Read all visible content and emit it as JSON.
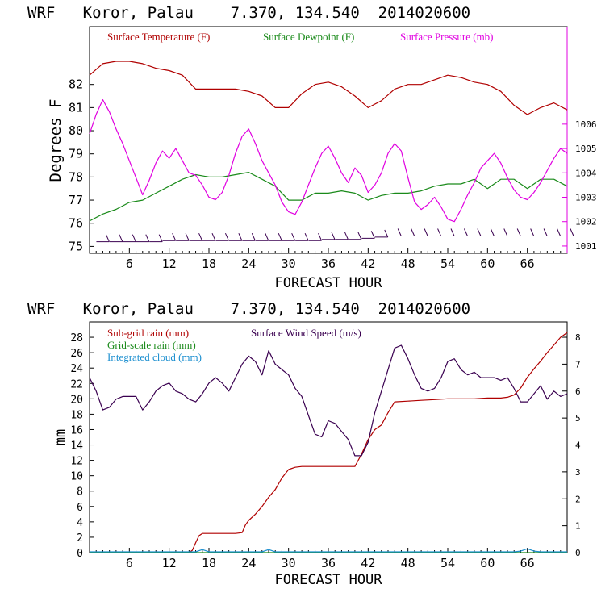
{
  "chart_data": [
    {
      "type": "line",
      "title": "WRF   Koror, Palau    7.370, 134.540  2014020600",
      "xlabel": "FORECAST HOUR",
      "ylabel": "Degrees F",
      "x_range": [
        0,
        72
      ],
      "x_ticks": [
        6,
        12,
        18,
        24,
        30,
        36,
        42,
        48,
        54,
        60,
        66
      ],
      "y_left_range": [
        74.7,
        84.5
      ],
      "y_left_ticks": [
        75,
        76,
        77,
        78,
        79,
        80,
        81,
        82
      ],
      "y_right_range": [
        1000.7,
        1010.0
      ],
      "y_right_ticks": [
        1001,
        1002,
        1003,
        1004,
        1005,
        1006
      ],
      "legend": [
        {
          "label": "Surface Temperature (F)",
          "color": "#b00000"
        },
        {
          "label": "Surface Dewpoint (F)",
          "color": "#1a8a1a"
        },
        {
          "label": "Surface Pressure (mb)",
          "color": "#e000e0"
        }
      ],
      "series": [
        {
          "name": "Surface Temperature (F)",
          "axis": "left",
          "color": "#b00000",
          "x": [
            0,
            2,
            4,
            6,
            8,
            10,
            12,
            14,
            16,
            18,
            20,
            22,
            24,
            26,
            28,
            30,
            32,
            34,
            36,
            38,
            40,
            42,
            44,
            46,
            48,
            50,
            52,
            54,
            56,
            58,
            60,
            62,
            64,
            66,
            68,
            70,
            72
          ],
          "y": [
            82.4,
            82.9,
            83.0,
            83.0,
            82.9,
            82.7,
            82.6,
            82.4,
            81.8,
            81.8,
            81.8,
            81.8,
            81.7,
            81.5,
            81.0,
            81.0,
            81.6,
            82.0,
            82.1,
            81.9,
            81.5,
            81.0,
            81.3,
            81.8,
            82.0,
            82.0,
            82.2,
            82.4,
            82.3,
            82.1,
            82.0,
            81.7,
            81.1,
            80.7,
            81.0,
            81.2,
            80.9
          ]
        },
        {
          "name": "Surface Dewpoint (F)",
          "axis": "left",
          "color": "#1a8a1a",
          "x": [
            0,
            2,
            4,
            6,
            8,
            10,
            12,
            14,
            16,
            18,
            20,
            22,
            24,
            26,
            28,
            30,
            32,
            34,
            36,
            38,
            40,
            42,
            44,
            46,
            48,
            50,
            52,
            54,
            56,
            58,
            60,
            62,
            64,
            66,
            68,
            70,
            72
          ],
          "y": [
            76.1,
            76.4,
            76.6,
            76.9,
            77.0,
            77.3,
            77.6,
            77.9,
            78.1,
            78.0,
            78.0,
            78.1,
            78.2,
            77.9,
            77.6,
            77.0,
            77.0,
            77.3,
            77.3,
            77.4,
            77.3,
            77.0,
            77.2,
            77.3,
            77.3,
            77.4,
            77.6,
            77.7,
            77.7,
            77.9,
            77.5,
            77.9,
            77.9,
            77.5,
            77.9,
            77.9,
            77.6
          ]
        },
        {
          "name": "Surface Pressure (mb)",
          "axis": "right",
          "color": "#e000e0",
          "x": [
            0,
            1,
            2,
            3,
            4,
            5,
            6,
            7,
            8,
            9,
            10,
            11,
            12,
            13,
            14,
            15,
            16,
            17,
            18,
            19,
            20,
            21,
            22,
            23,
            24,
            25,
            26,
            27,
            28,
            29,
            30,
            31,
            32,
            33,
            34,
            35,
            36,
            37,
            38,
            39,
            40,
            41,
            42,
            43,
            44,
            45,
            46,
            47,
            48,
            49,
            50,
            51,
            52,
            53,
            54,
            55,
            56,
            57,
            58,
            59,
            60,
            61,
            62,
            63,
            64,
            65,
            66,
            67,
            68,
            69,
            70,
            71,
            72
          ],
          "y": [
            1005.6,
            1006.4,
            1007.0,
            1006.5,
            1005.8,
            1005.2,
            1004.5,
            1003.8,
            1003.1,
            1003.7,
            1004.4,
            1004.9,
            1004.6,
            1005.0,
            1004.5,
            1004.0,
            1003.9,
            1003.5,
            1003.0,
            1002.9,
            1003.2,
            1003.9,
            1004.8,
            1005.5,
            1005.8,
            1005.2,
            1004.5,
            1004.0,
            1003.5,
            1002.8,
            1002.4,
            1002.3,
            1002.8,
            1003.5,
            1004.2,
            1004.8,
            1005.1,
            1004.6,
            1004.0,
            1003.6,
            1004.2,
            1003.9,
            1003.2,
            1003.5,
            1004.0,
            1004.8,
            1005.2,
            1004.9,
            1003.8,
            1002.8,
            1002.5,
            1002.7,
            1003.0,
            1002.6,
            1002.1,
            1002.0,
            1002.5,
            1003.1,
            1003.6,
            1004.2,
            1004.5,
            1004.8,
            1004.4,
            1003.8,
            1003.3,
            1003.0,
            1002.9,
            1003.2,
            1003.6,
            1004.1,
            1004.6,
            1005.0,
            1004.8
          ]
        },
        {
          "name": "Wind barbs",
          "axis": "left",
          "color": "#3a0050",
          "x": [
            2,
            4,
            6,
            8,
            10,
            12,
            14,
            16,
            18,
            20,
            22,
            24,
            26,
            28,
            30,
            32,
            34,
            36,
            38,
            40,
            42,
            44,
            46,
            48,
            50,
            52,
            54,
            56,
            58,
            60,
            62,
            64,
            66,
            68,
            70,
            72
          ],
          "y": [
            75.2,
            75.2,
            75.2,
            75.2,
            75.2,
            75.25,
            75.25,
            75.25,
            75.25,
            75.25,
            75.25,
            75.25,
            75.25,
            75.25,
            75.25,
            75.25,
            75.25,
            75.3,
            75.3,
            75.3,
            75.35,
            75.4,
            75.45,
            75.45,
            75.45,
            75.45,
            75.45,
            75.45,
            75.45,
            75.45,
            75.45,
            75.45,
            75.45,
            75.45,
            75.45,
            75.45
          ]
        }
      ]
    },
    {
      "type": "line",
      "title": "WRF   Koror, Palau    7.370, 134.540  2014020600",
      "xlabel": "FORECAST HOUR",
      "ylabel": "mm",
      "x_range": [
        0,
        72
      ],
      "x_ticks": [
        6,
        12,
        18,
        24,
        30,
        36,
        42,
        48,
        54,
        60,
        66
      ],
      "y_left_range": [
        0,
        30
      ],
      "y_left_ticks": [
        0,
        2,
        4,
        6,
        8,
        10,
        12,
        14,
        16,
        18,
        20,
        22,
        24,
        26,
        28
      ],
      "y_right_range": [
        0,
        8.57
      ],
      "y_right_ticks": [
        0,
        1,
        2,
        3,
        4,
        5,
        6,
        7,
        8
      ],
      "legend": [
        {
          "label": "Sub-grid rain (mm)",
          "color": "#b00000"
        },
        {
          "label": "Grid-scale rain (mm)",
          "color": "#1a8a1a"
        },
        {
          "label": "Integrated cloud (mm)",
          "color": "#1e90d0"
        },
        {
          "label": "Surface Wind Speed (m/s)",
          "color": "#3a0050"
        }
      ],
      "series": [
        {
          "name": "Sub-grid rain (mm)",
          "axis": "left",
          "color": "#b00000",
          "x": [
            0,
            15,
            15.5,
            16,
            16.5,
            17,
            18,
            20,
            22,
            23,
            23.5,
            24,
            25,
            26,
            27,
            28,
            29,
            30,
            31,
            32,
            34,
            36,
            38,
            40,
            41,
            42,
            43,
            44,
            45,
            46,
            48,
            50,
            52,
            54,
            56,
            58,
            60,
            62,
            63,
            64,
            65,
            66,
            67,
            68,
            69,
            70,
            71,
            72
          ],
          "y": [
            0,
            0,
            0.3,
            1.3,
            2.2,
            2.5,
            2.5,
            2.5,
            2.5,
            2.6,
            3.6,
            4.2,
            5.0,
            6.0,
            7.2,
            8.2,
            9.7,
            10.8,
            11.1,
            11.2,
            11.2,
            11.2,
            11.2,
            11.2,
            12.8,
            14.7,
            16.0,
            16.6,
            18.2,
            19.6,
            19.7,
            19.8,
            19.9,
            20.0,
            20.0,
            20.0,
            20.1,
            20.1,
            20.2,
            20.5,
            21.4,
            22.8,
            23.9,
            24.9,
            26.0,
            27.0,
            28.0,
            28.6
          ]
        },
        {
          "name": "Grid-scale rain (mm)",
          "axis": "left",
          "color": "#1a8a1a",
          "x": [
            0,
            72
          ],
          "y": [
            0,
            0
          ]
        },
        {
          "name": "Integrated cloud (mm)",
          "axis": "left",
          "color": "#1e90d0",
          "x": [
            0,
            4,
            8,
            12,
            16,
            17,
            18,
            22,
            26,
            27,
            28,
            32,
            36,
            40,
            44,
            48,
            52,
            56,
            60,
            64,
            65,
            66,
            67,
            68,
            72
          ],
          "y": [
            0.1,
            0.1,
            0.1,
            0.1,
            0.1,
            0.4,
            0.1,
            0.1,
            0.1,
            0.4,
            0.1,
            0.1,
            0.1,
            0.1,
            0.1,
            0.1,
            0.1,
            0.1,
            0.1,
            0.1,
            0.2,
            0.5,
            0.2,
            0.1,
            0.1
          ]
        },
        {
          "name": "Surface Wind Speed (m/s)",
          "axis": "right",
          "color": "#3a0050",
          "x": [
            0,
            1,
            2,
            3,
            4,
            5,
            6,
            7,
            8,
            9,
            10,
            11,
            12,
            13,
            14,
            15,
            16,
            17,
            18,
            19,
            20,
            21,
            22,
            23,
            24,
            25,
            26,
            27,
            28,
            29,
            30,
            31,
            32,
            33,
            34,
            35,
            36,
            37,
            38,
            39,
            40,
            41,
            42,
            43,
            44,
            45,
            46,
            47,
            48,
            49,
            50,
            51,
            52,
            53,
            54,
            55,
            56,
            57,
            58,
            59,
            60,
            61,
            62,
            63,
            64,
            65,
            66,
            67,
            68,
            69,
            70,
            71,
            72
          ],
          "y": [
            6.5,
            6.0,
            5.3,
            5.4,
            5.7,
            5.8,
            5.8,
            5.8,
            5.3,
            5.6,
            6.0,
            6.2,
            6.3,
            6.0,
            5.9,
            5.7,
            5.6,
            5.9,
            6.3,
            6.5,
            6.3,
            6.0,
            6.5,
            7.0,
            7.3,
            7.1,
            6.6,
            7.5,
            7.0,
            6.8,
            6.6,
            6.1,
            5.8,
            5.1,
            4.4,
            4.3,
            4.9,
            4.8,
            4.5,
            4.2,
            3.6,
            3.6,
            4.1,
            5.2,
            6.0,
            6.8,
            7.6,
            7.7,
            7.2,
            6.6,
            6.1,
            6.0,
            6.1,
            6.5,
            7.1,
            7.2,
            6.8,
            6.6,
            6.7,
            6.5,
            6.5,
            6.5,
            6.4,
            6.5,
            6.1,
            5.6,
            5.6,
            5.9,
            6.2,
            5.7,
            6.0,
            5.8,
            5.9
          ]
        }
      ]
    }
  ]
}
